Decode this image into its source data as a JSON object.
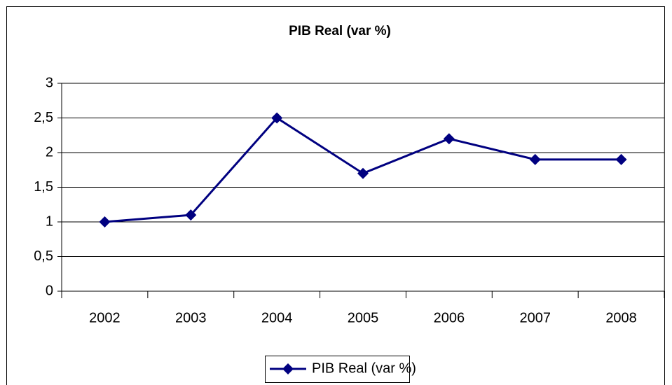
{
  "chart_data": {
    "type": "line",
    "title": "PIB Real (var %)",
    "categories": [
      "2002",
      "2003",
      "2004",
      "2005",
      "2006",
      "2007",
      "2008"
    ],
    "series": [
      {
        "name": "PIB Real (var %)",
        "color": "#000080",
        "values": [
          1,
          1.1,
          2.5,
          1.7,
          2.2,
          1.9,
          1.9
        ]
      }
    ],
    "ylim": [
      0,
      3
    ],
    "yticks": [
      0,
      {
        "value": 0.5,
        "label": "0,5"
      },
      1,
      {
        "value": 1.5,
        "label": "1,5"
      },
      2,
      {
        "value": 2.5,
        "label": "2,5"
      },
      3
    ],
    "grid": true,
    "legend": "bottom"
  }
}
